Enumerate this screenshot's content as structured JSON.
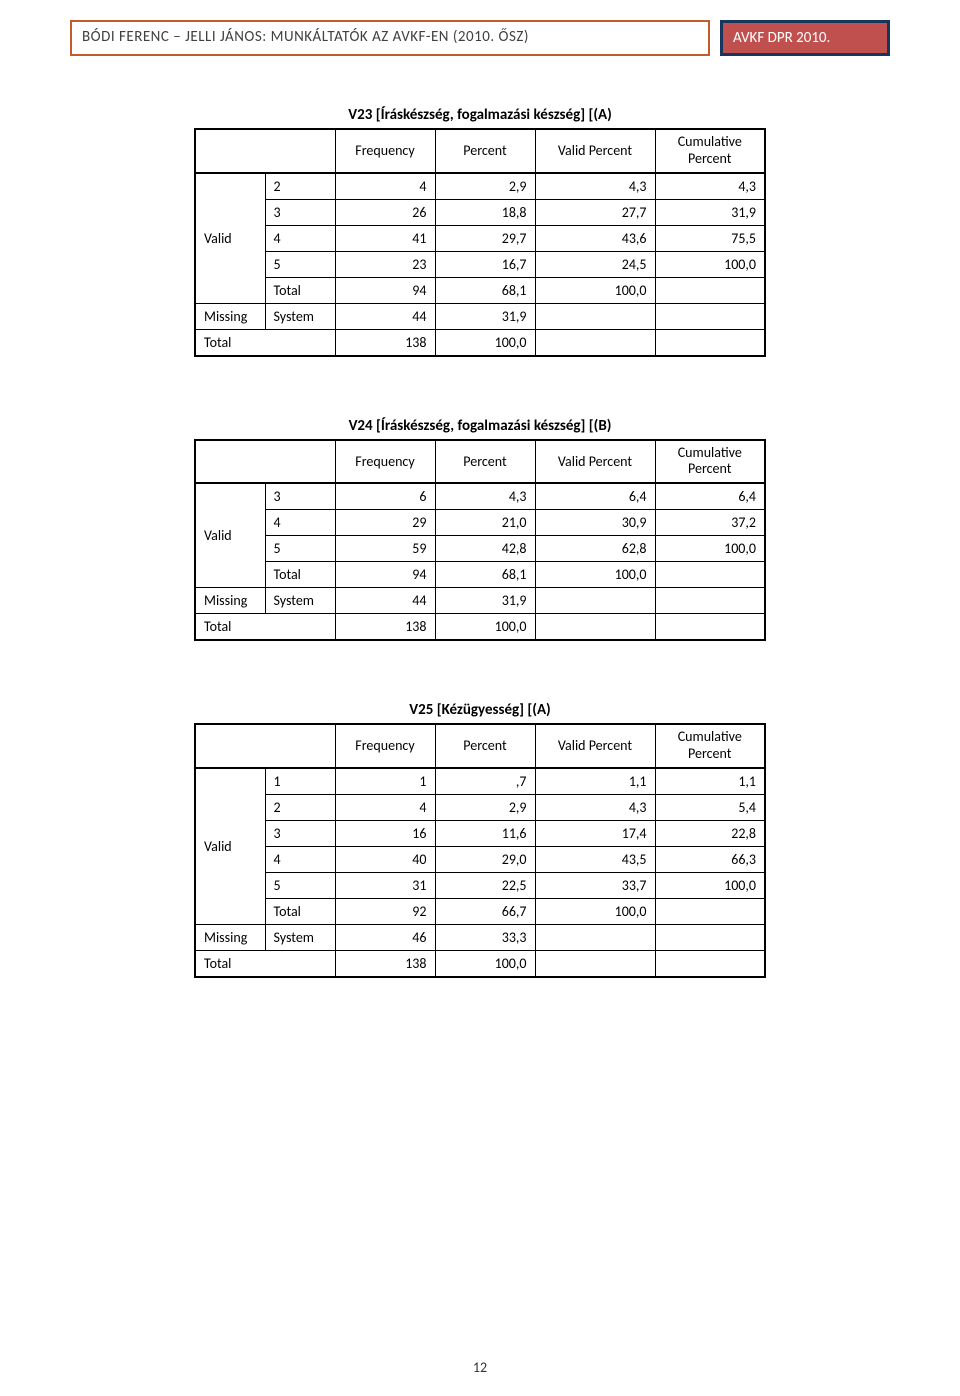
{
  "header": {
    "left": "BÓDI FERENC – JELLI JÁNOS: MUNKÁLTATÓK AZ AVKF-EN (2010. ŐSZ)",
    "right": "AVKF DPR 2010."
  },
  "columns": {
    "frequency": "Frequency",
    "percent": "Percent",
    "valid_percent": "Valid Percent",
    "cumulative": "Cumulative",
    "cumulative2": "Percent"
  },
  "labels": {
    "valid": "Valid",
    "missing": "Missing",
    "system": "System",
    "total": "Total"
  },
  "tables": [
    {
      "title": "V23 [Íráskészség, fogalmazási készség] [(A)",
      "valid_rows": [
        {
          "cat": "2",
          "freq": "4",
          "pct": "2,9",
          "vpct": "4,3",
          "cum": "4,3"
        },
        {
          "cat": "3",
          "freq": "26",
          "pct": "18,8",
          "vpct": "27,7",
          "cum": "31,9"
        },
        {
          "cat": "4",
          "freq": "41",
          "pct": "29,7",
          "vpct": "43,6",
          "cum": "75,5"
        },
        {
          "cat": "5",
          "freq": "23",
          "pct": "16,7",
          "vpct": "24,5",
          "cum": "100,0"
        }
      ],
      "valid_total": {
        "freq": "94",
        "pct": "68,1",
        "vpct": "100,0"
      },
      "missing": {
        "freq": "44",
        "pct": "31,9"
      },
      "total": {
        "freq": "138",
        "pct": "100,0"
      }
    },
    {
      "title": "V24 [Íráskészség, fogalmazási készség] [(B)",
      "valid_rows": [
        {
          "cat": "3",
          "freq": "6",
          "pct": "4,3",
          "vpct": "6,4",
          "cum": "6,4"
        },
        {
          "cat": "4",
          "freq": "29",
          "pct": "21,0",
          "vpct": "30,9",
          "cum": "37,2"
        },
        {
          "cat": "5",
          "freq": "59",
          "pct": "42,8",
          "vpct": "62,8",
          "cum": "100,0"
        }
      ],
      "valid_total": {
        "freq": "94",
        "pct": "68,1",
        "vpct": "100,0"
      },
      "missing": {
        "freq": "44",
        "pct": "31,9"
      },
      "total": {
        "freq": "138",
        "pct": "100,0"
      }
    },
    {
      "title": "V25 [Kézügyesség] [(A)",
      "valid_rows": [
        {
          "cat": "1",
          "freq": "1",
          "pct": ",7",
          "vpct": "1,1",
          "cum": "1,1"
        },
        {
          "cat": "2",
          "freq": "4",
          "pct": "2,9",
          "vpct": "4,3",
          "cum": "5,4"
        },
        {
          "cat": "3",
          "freq": "16",
          "pct": "11,6",
          "vpct": "17,4",
          "cum": "22,8"
        },
        {
          "cat": "4",
          "freq": "40",
          "pct": "29,0",
          "vpct": "43,5",
          "cum": "66,3"
        },
        {
          "cat": "5",
          "freq": "31",
          "pct": "22,5",
          "vpct": "33,7",
          "cum": "100,0"
        }
      ],
      "valid_total": {
        "freq": "92",
        "pct": "66,7",
        "vpct": "100,0"
      },
      "missing": {
        "freq": "46",
        "pct": "33,3"
      },
      "total": {
        "freq": "138",
        "pct": "100,0"
      }
    }
  ],
  "page_number": "12"
}
